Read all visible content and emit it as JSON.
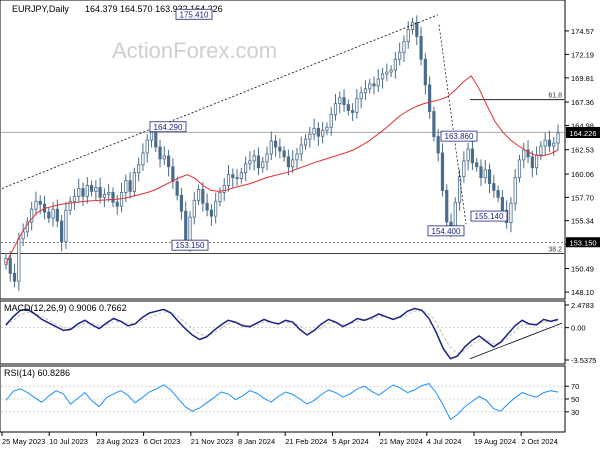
{
  "header": {
    "symbol": "EURJPY,Daily",
    "ohlc": "164.379 164.570 163.932 164.226"
  },
  "watermark": "ActionForex.com",
  "colors": {
    "candle": "#4a6c8c",
    "sma": "#e03030",
    "macd_main": "#1a237e",
    "macd_signal": "#c0c0c0",
    "rsi": "#1e90ff",
    "trendline": "#000000",
    "label_border": "#1a237e",
    "price_tag_bg": "#000000"
  },
  "chart_data": [
    {
      "type": "candlestick",
      "title": "EURJPY,Daily",
      "ylim": [
        147.5,
        177.6
      ],
      "yticks": [
        148.1,
        150.49,
        152.95,
        155.34,
        157.7,
        160.06,
        162.53,
        164.98,
        167.36,
        169.81,
        172.19,
        174.57
      ],
      "xticks": [
        "25 May 2023",
        "10 Jul 2023",
        "23 Aug 2023",
        "6 Oct 2023",
        "21 Nov 2023",
        "8 Jan 2024",
        "21 Feb 2024",
        "5 Apr 2024",
        "21 May 2024",
        "4 Jul 2024",
        "19 Aug 2024",
        "2 Oct 2024"
      ],
      "close_series": [
        151.5,
        150.0,
        149.2,
        153.5,
        154.2,
        155.2,
        156.5,
        157.3,
        157.0,
        156.2,
        155.6,
        156.5,
        155.3,
        153.2,
        156.4,
        157.3,
        157.8,
        158.6,
        157.8,
        158.9,
        158.3,
        158.7,
        157.7,
        158.0,
        158.2,
        157.2,
        156.8,
        158.2,
        159.4,
        158.3,
        160.2,
        161.0,
        162.2,
        163.5,
        164.29,
        162.8,
        161.6,
        161.9,
        160.8,
        159.3,
        157.9,
        156.3,
        153.15,
        155.7,
        157.4,
        158.5,
        157.1,
        156.4,
        155.8,
        157.3,
        158.2,
        158.9,
        160.0,
        159.7,
        159.6,
        160.2,
        161.1,
        161.4,
        161.9,
        160.7,
        161.3,
        162.1,
        163.4,
        162.8,
        162.4,
        161.8,
        160.8,
        161.5,
        162.1,
        163.0,
        163.6,
        164.1,
        164.7,
        163.9,
        164.5,
        164.8,
        166.1,
        167.2,
        167.8,
        167.1,
        166.5,
        166.3,
        167.7,
        168.3,
        168.7,
        169.2,
        169.0,
        169.7,
        170.2,
        170.4,
        170.6,
        171.7,
        172.4,
        173.5,
        174.7,
        175.41,
        174.0,
        171.7,
        169.1,
        166.4,
        163.86,
        162.2,
        158.4,
        155.2,
        154.4,
        157.2,
        159.8,
        161.4,
        162.6,
        161.2,
        160.8,
        159.7,
        160.5,
        159.1,
        158.4,
        157.7,
        156.4,
        155.14,
        157.1,
        159.7,
        161.5,
        162.5,
        161.8,
        160.7,
        162.0,
        162.9,
        163.5,
        162.9,
        163.2,
        164.226
      ],
      "sma_series": [
        151.0,
        152.6,
        154.1,
        155.3,
        156.2,
        156.6,
        156.8,
        157.0,
        157.1,
        157.2,
        157.3,
        157.35,
        157.4,
        157.45,
        157.5,
        157.6,
        157.8,
        158.0,
        158.2,
        158.5,
        158.9,
        159.3,
        159.7,
        160.0,
        159.6,
        158.9,
        158.4,
        158.3,
        158.45,
        158.7,
        158.9,
        159.1,
        159.4,
        159.7,
        159.9,
        160.1,
        160.3,
        160.6,
        160.9,
        161.2,
        161.45,
        161.7,
        161.95,
        162.2,
        162.5,
        162.9,
        163.4,
        164.0,
        164.6,
        165.3,
        166.0,
        166.5,
        166.9,
        167.2,
        167.4,
        167.6,
        167.9,
        168.6,
        169.4,
        170.0,
        168.7,
        167.0,
        165.4,
        164.3,
        163.5,
        162.9,
        162.4,
        162.0,
        161.9,
        162.1,
        162.5
      ],
      "sma_x_start": 0,
      "price_labels": [
        "175.410",
        "164.290",
        "163.860",
        "155.140",
        "154.400",
        "153.150"
      ],
      "level_labels": [
        "61.8",
        "38.2"
      ],
      "level_values": [
        167.6,
        152.0
      ],
      "support_value": 153.15,
      "current_price": "164.226",
      "current_value": 164.226,
      "highlighted_price": "153.150"
    },
    {
      "type": "line",
      "title": "MACD(12,26,9) 0.9006 0.7662",
      "ylim": [
        -3.5375,
        2.4783
      ],
      "yticks": [
        "2.4783",
        "0.00",
        "-3.5375"
      ],
      "main_series": [
        0.3,
        1.2,
        1.9,
        2.0,
        1.5,
        0.9,
        0.5,
        0.1,
        -0.3,
        -0.2,
        0.4,
        0.8,
        0.3,
        -0.1,
        0.5,
        1.0,
        0.7,
        0.2,
        0.4,
        1.1,
        1.6,
        1.8,
        2.0,
        1.6,
        0.7,
        -0.1,
        -0.8,
        -1.3,
        -1.0,
        -0.3,
        0.3,
        0.8,
        0.6,
        0.2,
        0.1,
        0.5,
        0.9,
        0.6,
        0.4,
        0.8,
        0.6,
        -0.2,
        -0.8,
        -0.3,
        0.4,
        0.9,
        0.6,
        0.1,
        0.5,
        1.0,
        0.8,
        1.1,
        1.5,
        1.2,
        0.9,
        1.2,
        1.8,
        2.1,
        1.9,
        1.0,
        -0.5,
        -2.3,
        -3.4,
        -3.1,
        -2.1,
        -1.4,
        -0.9,
        -1.5,
        -2.1,
        -1.6,
        -0.7,
        0.2,
        0.8,
        0.4,
        0.3,
        0.9,
        0.7,
        0.9006
      ],
      "signal_series": [
        0.2,
        0.8,
        1.4,
        1.7,
        1.6,
        1.2,
        0.8,
        0.4,
        0.0,
        -0.1,
        0.1,
        0.5,
        0.5,
        0.2,
        0.3,
        0.6,
        0.7,
        0.5,
        0.4,
        0.7,
        1.1,
        1.4,
        1.7,
        1.7,
        1.2,
        0.6,
        -0.1,
        -0.7,
        -0.9,
        -0.6,
        -0.1,
        0.4,
        0.6,
        0.4,
        0.2,
        0.3,
        0.6,
        0.6,
        0.5,
        0.6,
        0.6,
        0.2,
        -0.3,
        -0.3,
        0.0,
        0.5,
        0.6,
        0.3,
        0.4,
        0.7,
        0.8,
        0.9,
        1.2,
        1.2,
        1.0,
        1.1,
        1.4,
        1.8,
        1.9,
        1.5,
        0.6,
        -0.9,
        -2.2,
        -2.8,
        -2.5,
        -1.9,
        -1.3,
        -1.3,
        -1.7,
        -1.7,
        -1.1,
        -0.4,
        0.3,
        0.4,
        0.4,
        0.6,
        0.7,
        0.7662
      ]
    },
    {
      "type": "line",
      "title": "RSI(14) 60.8286",
      "ylim": [
        0,
        100
      ],
      "yticks": [
        "70",
        "50",
        "30"
      ],
      "series": [
        48,
        62,
        66,
        60,
        52,
        45,
        55,
        63,
        58,
        42,
        51,
        60,
        47,
        38,
        52,
        58,
        63,
        56,
        44,
        52,
        61,
        66,
        72,
        64,
        51,
        38,
        31,
        36,
        44,
        52,
        61,
        58,
        49,
        55,
        63,
        59,
        51,
        45,
        54,
        61,
        57,
        50,
        42,
        48,
        57,
        64,
        60,
        53,
        58,
        66,
        70,
        62,
        56,
        64,
        72,
        67,
        60,
        64,
        71,
        74,
        60,
        40,
        18,
        26,
        38,
        46,
        54,
        48,
        35,
        31,
        42,
        52,
        60,
        56,
        53,
        60,
        63,
        60.8286
      ]
    }
  ]
}
